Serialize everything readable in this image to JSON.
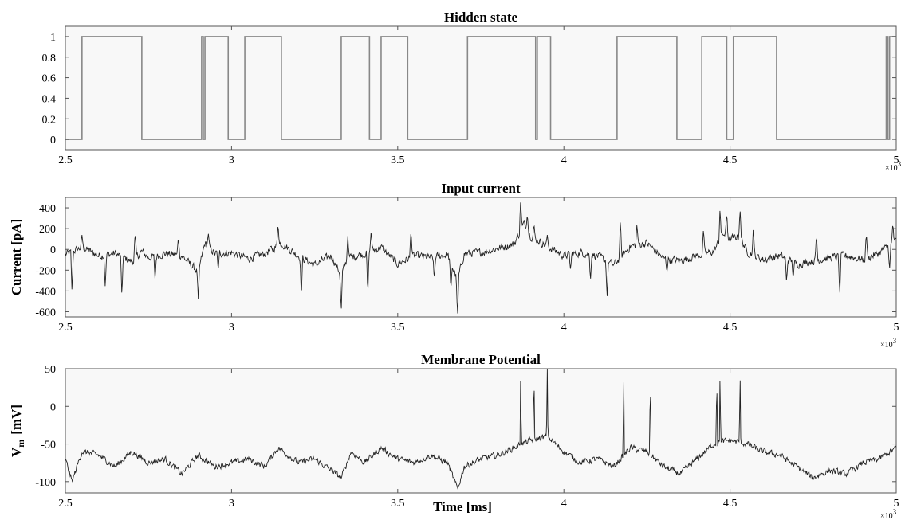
{
  "chart_data": [
    {
      "type": "line",
      "title": "Hidden state",
      "xlabel": "",
      "ylabel": "",
      "xlim": [
        2.5,
        5
      ],
      "ylim": [
        -0.1,
        1.1
      ],
      "x_ticks": [
        "2.5",
        "3",
        "3.5",
        "4",
        "4.5",
        "5"
      ],
      "y_ticks": [
        "0",
        "0.2",
        "0.4",
        "0.6",
        "0.8",
        "1"
      ],
      "x_multiplier": "×10",
      "x_multiplier_exp": "3",
      "grid": false,
      "series_style": "step",
      "transitions_x": [
        2.55,
        2.73,
        2.91,
        2.915,
        2.92,
        2.99,
        3.04,
        3.15,
        3.33,
        3.415,
        3.45,
        3.53,
        3.71,
        3.915,
        3.92,
        3.96,
        4.16,
        4.34,
        4.415,
        4.49,
        4.51,
        4.64,
        4.97,
        4.975,
        4.98
      ],
      "initial_value": 0
    },
    {
      "type": "line",
      "title": "Input current",
      "xlabel": "",
      "ylabel": "Current [pA]",
      "xlim": [
        2.5,
        5
      ],
      "ylim": [
        -650,
        500
      ],
      "x_ticks": [
        "2.5",
        "3",
        "3.5",
        "4",
        "4.5",
        "5"
      ],
      "y_ticks": [
        "-600",
        "-400",
        "-200",
        "0",
        "200",
        "400"
      ],
      "x_multiplier": "×10",
      "x_multiplier_exp": "3",
      "grid": false,
      "series": [
        {
          "x": [
            2.5,
            2.55,
            2.6,
            2.65,
            2.7,
            2.73,
            2.75,
            2.8,
            2.85,
            2.9,
            2.92,
            2.95,
            3.0,
            3.05,
            3.1,
            3.15,
            3.2,
            3.25,
            3.3,
            3.33,
            3.35,
            3.4,
            3.45,
            3.5,
            3.55,
            3.6,
            3.65,
            3.68,
            3.7,
            3.75,
            3.8,
            3.85,
            3.88,
            3.9,
            3.95,
            4.0,
            4.05,
            4.1,
            4.15,
            4.2,
            4.25,
            4.3,
            4.35,
            4.4,
            4.45,
            4.48,
            4.5,
            4.53,
            4.55,
            4.6,
            4.65,
            4.7,
            4.75,
            4.8,
            4.85,
            4.9,
            4.95,
            5.0
          ],
          "y": [
            -50,
            20,
            -60,
            -40,
            -120,
            -20,
            -80,
            -40,
            -60,
            -220,
            60,
            -40,
            -30,
            -90,
            -40,
            60,
            -60,
            -150,
            -60,
            -250,
            -80,
            -40,
            20,
            -140,
            -60,
            -80,
            -50,
            -300,
            -40,
            -30,
            10,
            50,
            250,
            130,
            30,
            -60,
            -30,
            -60,
            -150,
            30,
            60,
            -90,
            -110,
            -60,
            -20,
            150,
            100,
            130,
            -20,
            -100,
            -60,
            -140,
            -110,
            -80,
            -60,
            -100,
            -30,
            80
          ],
          "spikes": [
            [
              2.52,
              -420
            ],
            [
              2.55,
              140
            ],
            [
              2.62,
              -380
            ],
            [
              2.67,
              -450
            ],
            [
              2.71,
              170
            ],
            [
              2.77,
              -300
            ],
            [
              2.84,
              120
            ],
            [
              2.9,
              -480
            ],
            [
              2.93,
              160
            ],
            [
              2.96,
              -200
            ],
            [
              3.14,
              260
            ],
            [
              3.21,
              -460
            ],
            [
              3.33,
              -600
            ],
            [
              3.35,
              130
            ],
            [
              3.41,
              -450
            ],
            [
              3.42,
              180
            ],
            [
              3.54,
              200
            ],
            [
              3.61,
              -300
            ],
            [
              3.66,
              -400
            ],
            [
              3.68,
              -650
            ],
            [
              3.87,
              480
            ],
            [
              3.89,
              350
            ],
            [
              3.91,
              240
            ],
            [
              3.95,
              140
            ],
            [
              4.02,
              -200
            ],
            [
              4.08,
              -300
            ],
            [
              4.13,
              -480
            ],
            [
              4.17,
              290
            ],
            [
              4.22,
              250
            ],
            [
              4.31,
              -220
            ],
            [
              4.42,
              200
            ],
            [
              4.47,
              400
            ],
            [
              4.49,
              360
            ],
            [
              4.53,
              390
            ],
            [
              4.57,
              210
            ],
            [
              4.67,
              -320
            ],
            [
              4.69,
              -280
            ],
            [
              4.76,
              150
            ],
            [
              4.83,
              -450
            ],
            [
              4.91,
              170
            ],
            [
              4.98,
              -200
            ],
            [
              4.99,
              260
            ]
          ]
        }
      ]
    },
    {
      "type": "line",
      "title": "Membrane Potential",
      "xlabel": "Time [ms]",
      "ylabel": "V",
      "ylabel_sub": "m",
      "ylabel_unit": "[mV]",
      "xlim": [
        2.5,
        5
      ],
      "ylim": [
        -115,
        50
      ],
      "x_ticks": [
        "2.5",
        "3",
        "3.5",
        "4",
        "4.5",
        "5"
      ],
      "y_ticks": [
        "-100",
        "-50",
        "0",
        "50"
      ],
      "x_multiplier": "×10",
      "x_multiplier_exp": "3",
      "grid": false,
      "series": [
        {
          "x": [
            2.5,
            2.52,
            2.55,
            2.6,
            2.65,
            2.7,
            2.75,
            2.8,
            2.85,
            2.9,
            2.95,
            3.0,
            3.05,
            3.1,
            3.14,
            3.2,
            3.25,
            3.3,
            3.33,
            3.36,
            3.4,
            3.45,
            3.5,
            3.55,
            3.6,
            3.65,
            3.68,
            3.7,
            3.75,
            3.8,
            3.85,
            3.9,
            3.95,
            4.0,
            4.05,
            4.1,
            4.15,
            4.2,
            4.25,
            4.3,
            4.35,
            4.4,
            4.45,
            4.5,
            4.55,
            4.6,
            4.65,
            4.7,
            4.75,
            4.8,
            4.85,
            4.9,
            4.95,
            5.0
          ],
          "y": [
            -70,
            -100,
            -60,
            -65,
            -80,
            -60,
            -75,
            -70,
            -90,
            -65,
            -80,
            -75,
            -70,
            -80,
            -55,
            -75,
            -70,
            -85,
            -95,
            -60,
            -75,
            -55,
            -70,
            -75,
            -65,
            -75,
            -110,
            -80,
            -70,
            -65,
            -55,
            -45,
            -40,
            -60,
            -75,
            -70,
            -80,
            -55,
            -60,
            -80,
            -90,
            -70,
            -50,
            -45,
            -50,
            -60,
            -65,
            -80,
            -95,
            -85,
            -90,
            -75,
            -70,
            -55
          ],
          "spikes": [
            3.87,
            3.91,
            3.95,
            4.18,
            4.26,
            4.46,
            4.47,
            4.53
          ]
        }
      ]
    }
  ]
}
